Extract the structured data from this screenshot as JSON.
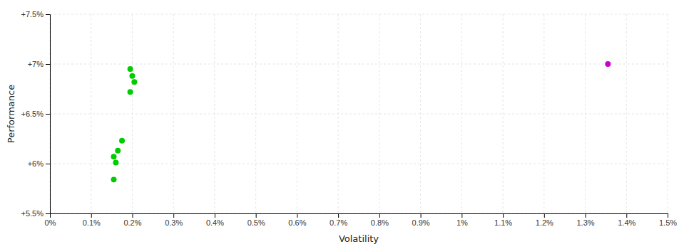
{
  "chart_data": {
    "type": "scatter",
    "xlabel": "Volatility",
    "ylabel": "Performance",
    "xlim": [
      0.0,
      0.015
    ],
    "ylim": [
      0.055,
      0.075
    ],
    "xticks": [
      {
        "value": 0.0,
        "label": "0%"
      },
      {
        "value": 0.001,
        "label": "0.1%"
      },
      {
        "value": 0.002,
        "label": "0.2%"
      },
      {
        "value": 0.003,
        "label": "0.3%"
      },
      {
        "value": 0.004,
        "label": "0.4%"
      },
      {
        "value": 0.005,
        "label": "0.5%"
      },
      {
        "value": 0.006,
        "label": "0.6%"
      },
      {
        "value": 0.007,
        "label": "0.7%"
      },
      {
        "value": 0.008,
        "label": "0.8%"
      },
      {
        "value": 0.009,
        "label": "0.9%"
      },
      {
        "value": 0.01,
        "label": "1%"
      },
      {
        "value": 0.011,
        "label": "1.1%"
      },
      {
        "value": 0.012,
        "label": "1.2%"
      },
      {
        "value": 0.013,
        "label": "1.3%"
      },
      {
        "value": 0.014,
        "label": "1.4%"
      },
      {
        "value": 0.015,
        "label": "1.5%"
      }
    ],
    "yticks": [
      {
        "value": 0.055,
        "label": "+5.5%"
      },
      {
        "value": 0.06,
        "label": "+6%"
      },
      {
        "value": 0.065,
        "label": "+6.5%"
      },
      {
        "value": 0.07,
        "label": "+7%"
      },
      {
        "value": 0.075,
        "label": "+7.5%"
      }
    ],
    "grid": true,
    "series": [
      {
        "color": "#00cc00",
        "x": [
          0.00195,
          0.002,
          0.00205,
          0.00195,
          0.00175,
          0.00165,
          0.00155,
          0.0016,
          0.00155
        ],
        "values": [
          0.0695,
          0.0688,
          0.0682,
          0.0672,
          0.0623,
          0.0613,
          0.0607,
          0.0601,
          0.0584
        ]
      },
      {
        "color": "#cc00cc",
        "x": [
          0.01355
        ],
        "values": [
          0.07
        ]
      }
    ]
  }
}
